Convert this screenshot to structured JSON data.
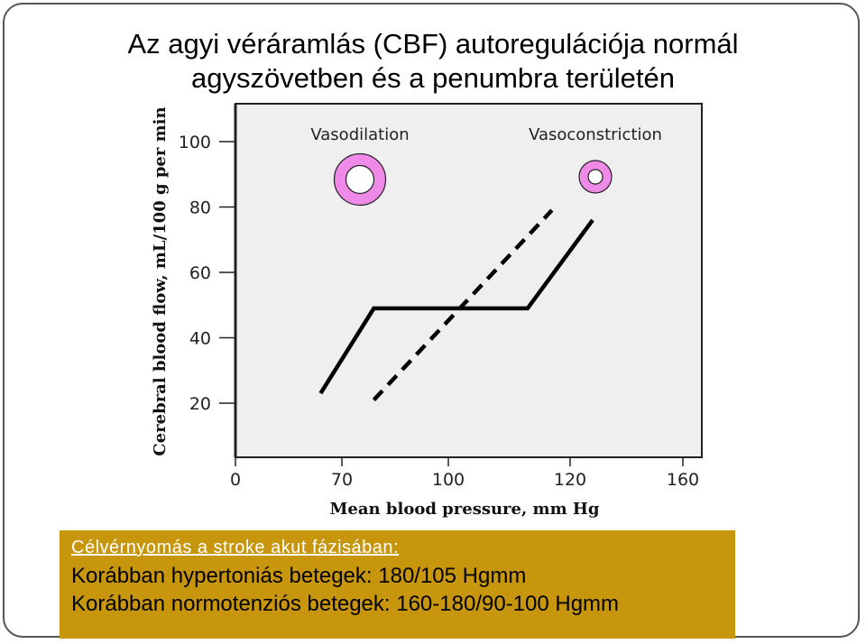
{
  "slide": {
    "title_line1": "Az agyi véráramlás (CBF) autoregulációja normál",
    "title_line2": "agyszövetben és a penumbra területén"
  },
  "info_box": {
    "heading": "Célvérnyomás a stroke akut fázisában:",
    "line1": "Korábban hypertoniás betegek: 180/105 Hgmm",
    "line2": "Korábban normotenziós betegek: 160-180/90-100 Hgmm",
    "background_color": "#c8960c"
  },
  "chart_data": {
    "type": "line",
    "xlabel": "Mean blood pressure, mm Hg",
    "ylabel": "Cerebral blood flow, mL/100 g per min",
    "x_ticks": [
      "0",
      "70",
      "100",
      "120",
      "160"
    ],
    "y_ticks": [
      "20",
      "40",
      "60",
      "80",
      "100"
    ],
    "grid": false,
    "series": [
      {
        "style": "solid",
        "color": "#000000",
        "x": [
          56,
          79,
          113,
          128
        ],
        "y": [
          23,
          49,
          49,
          76
        ]
      },
      {
        "style": "dashed",
        "color": "#000000",
        "x": [
          79,
          117
        ],
        "y": [
          21,
          79
        ]
      }
    ],
    "annotations": [
      {
        "label": "Vasodilation",
        "icon": "vessel-dilated-icon",
        "ring_color": "#f08ae8"
      },
      {
        "label": "Vasoconstriction",
        "icon": "vessel-constricted-icon",
        "ring_color": "#f08ae8"
      }
    ]
  }
}
